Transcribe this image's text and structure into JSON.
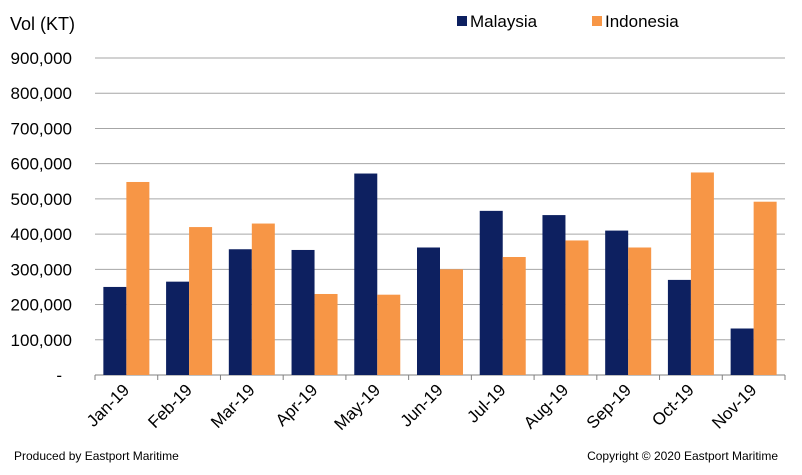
{
  "chart_data": {
    "type": "bar",
    "title": "",
    "ylabel": "Vol (KT)",
    "xlabel": "",
    "categories": [
      "Jan-19",
      "Feb-19",
      "Mar-19",
      "Apr-19",
      "May-19",
      "Jun-19",
      "Jul-19",
      "Aug-19",
      "Sep-19",
      "Oct-19",
      "Nov-19"
    ],
    "series": [
      {
        "name": "Malaysia",
        "color": "#0d2060",
        "values": [
          250000,
          265000,
          357000,
          355000,
          572000,
          362000,
          466000,
          454000,
          410000,
          270000,
          132000
        ]
      },
      {
        "name": "Indonesia",
        "color": "#f79646",
        "values": [
          548000,
          420000,
          430000,
          230000,
          228000,
          300000,
          335000,
          382000,
          362000,
          575000,
          492000
        ]
      }
    ],
    "ylim": [
      0,
      900000
    ],
    "yticks": [
      0,
      100000,
      200000,
      300000,
      400000,
      500000,
      600000,
      700000,
      800000,
      900000
    ],
    "ytick_labels": [
      "-",
      "100,000",
      "200,000",
      "300,000",
      "400,000",
      "500,000",
      "600,000",
      "700,000",
      "800,000",
      "900,000"
    ],
    "grid": true,
    "legend_position": "top-right"
  },
  "footer": {
    "left": "Produced by  Eastport Maritime",
    "right": "Copyright © 2020  Eastport Maritime"
  }
}
